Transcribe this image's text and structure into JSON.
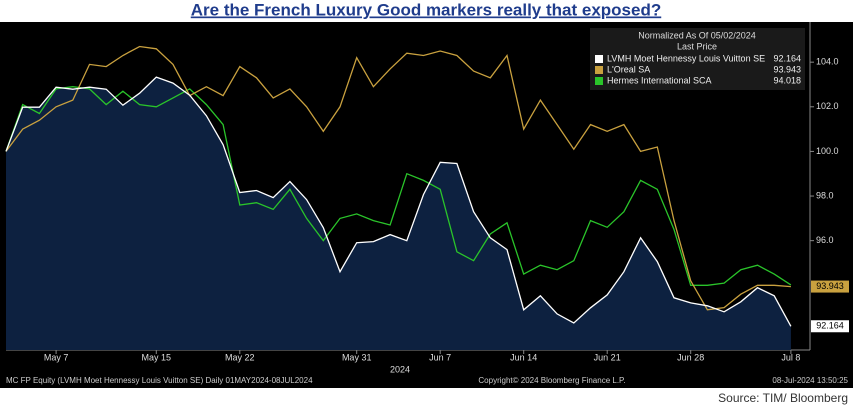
{
  "chart_data": {
    "type": "line",
    "title": "Are the French Luxury Good markers really that exposed?",
    "legend_title": "Normalized As Of 05/02/2024",
    "legend_subtitle": "Last Price",
    "legend_position": "top-right",
    "categories": [
      null,
      null,
      null,
      "May 7",
      null,
      null,
      null,
      null,
      null,
      "May 15",
      null,
      null,
      null,
      null,
      "May 22",
      null,
      null,
      null,
      null,
      null,
      null,
      "May 31",
      null,
      null,
      null,
      null,
      "Jun 7",
      null,
      null,
      null,
      null,
      "Jun 14",
      null,
      null,
      null,
      null,
      "Jun 21",
      null,
      null,
      null,
      null,
      "Jun 28",
      null,
      null,
      null,
      null,
      null,
      "Jul 8"
    ],
    "xlabel": "2024",
    "ylim": [
      91.1,
      105.8
    ],
    "yticks": [
      {
        "value": 96,
        "label": "96.0"
      },
      {
        "value": 98,
        "label": "98.0"
      },
      {
        "value": 100,
        "label": "100.0"
      },
      {
        "value": 102,
        "label": "102.0"
      },
      {
        "value": 104,
        "label": "104.0"
      }
    ],
    "grid": false,
    "series": [
      {
        "name": "LVMH Moet Hennessy Louis Vuitton SE",
        "color": "#ffffff",
        "fill": "#0d2140",
        "tag": true,
        "values": [
          100.0,
          101.98,
          101.98,
          102.88,
          102.79,
          102.88,
          102.79,
          102.07,
          102.61,
          103.33,
          103.06,
          102.52,
          101.6,
          100.3,
          98.16,
          98.25,
          97.93,
          98.65,
          97.84,
          96.58,
          94.61,
          95.91,
          95.96,
          96.27,
          96.0,
          98.07,
          99.51,
          99.46,
          97.3,
          96.13,
          95.6,
          92.9,
          93.53,
          92.72,
          92.31,
          92.99,
          93.57,
          94.61,
          96.13,
          95.06,
          93.44,
          93.21,
          93.08,
          92.81,
          93.26,
          93.89,
          93.53,
          92.164
        ]
      },
      {
        "name": "L'Oreal SA",
        "color": "#c9a13f",
        "tag": true,
        "values": [
          100.0,
          101.0,
          101.4,
          102.0,
          102.3,
          103.9,
          103.8,
          104.3,
          104.7,
          104.6,
          103.9,
          102.5,
          102.9,
          102.5,
          103.8,
          103.3,
          102.4,
          102.8,
          102.0,
          100.9,
          102.0,
          104.2,
          102.9,
          103.7,
          104.4,
          104.3,
          104.5,
          104.3,
          103.6,
          103.3,
          104.3,
          101.0,
          102.3,
          101.2,
          100.1,
          101.2,
          100.9,
          101.2,
          100.0,
          100.2,
          96.9,
          94.2,
          92.9,
          93.0,
          93.6,
          94.0,
          94.0,
          93.943
        ]
      },
      {
        "name": "Hermes International SCA",
        "color": "#2ac42a",
        "tag": false,
        "values": [
          100.0,
          102.1,
          101.7,
          102.8,
          102.9,
          102.8,
          102.1,
          102.7,
          102.1,
          102.0,
          102.4,
          102.8,
          102.1,
          101.2,
          97.6,
          97.7,
          97.4,
          98.3,
          97.0,
          96.0,
          97.0,
          97.2,
          96.9,
          96.7,
          99.0,
          98.7,
          98.3,
          95.5,
          95.1,
          96.3,
          96.8,
          94.5,
          94.9,
          94.7,
          95.1,
          96.9,
          96.6,
          97.3,
          98.7,
          98.3,
          96.5,
          94.0,
          94.0,
          94.1,
          94.7,
          94.9,
          94.5,
          94.018
        ]
      }
    ],
    "footer_left": "MC FP Equity (LVMH Moet Hennessy Louis Vuitton SE)  Daily 01MAY2024-08JUL2024",
    "footer_center": "Copyright© 2024 Bloomberg Finance L.P.",
    "footer_right": "08-Jul-2024 13:50:25",
    "source": "Source: TIM/ Bloomberg"
  }
}
